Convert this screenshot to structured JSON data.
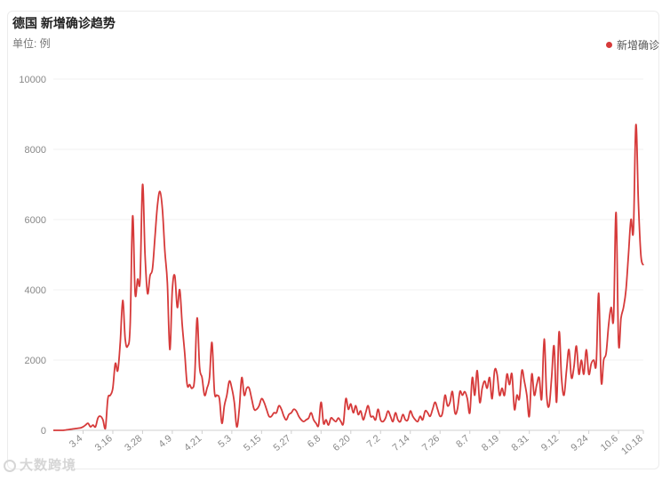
{
  "header": {
    "title": "德国 新增确诊趋势",
    "unit": "单位: 例"
  },
  "legend": {
    "label": "新增确诊",
    "color": "#d63a3a"
  },
  "watermark": {
    "text": "大数跨境",
    "icon": "logo-icon"
  },
  "chart_data": {
    "type": "line",
    "title": "德国 新增确诊趋势",
    "ylabel": "单位: 例",
    "ylim": [
      0,
      10000
    ],
    "yticks": [
      0,
      2000,
      4000,
      6000,
      8000,
      10000
    ],
    "xtick_labels": [
      "3.4",
      "3.16",
      "3.28",
      "4.9",
      "4.21",
      "5.3",
      "5.15",
      "5.27",
      "6.8",
      "6.20",
      "7.2",
      "7.14",
      "7.26",
      "8.7",
      "8.19",
      "8.31",
      "9.12",
      "9.24",
      "10.6",
      "10.18"
    ],
    "x_start": "2.21",
    "x_end": "10.20",
    "grid": true,
    "legend_position": "top-right",
    "series": [
      {
        "name": "新增确诊",
        "color": "#d63a3a",
        "values": [
          0,
          0,
          0,
          0,
          0,
          10,
          20,
          30,
          40,
          50,
          60,
          70,
          100,
          150,
          200,
          100,
          150,
          100,
          350,
          400,
          300,
          50,
          900,
          1000,
          1200,
          1900,
          1700,
          2500,
          3700,
          2600,
          2400,
          3000,
          6100,
          3900,
          4300,
          4300,
          7000,
          5000,
          3900,
          4400,
          4600,
          5500,
          6400,
          6800,
          6300,
          5100,
          4200,
          2300,
          4000,
          4400,
          3500,
          4000,
          3000,
          2200,
          1300,
          1300,
          1200,
          1500,
          3200,
          1800,
          1500,
          1000,
          1200,
          1500,
          2500,
          1100,
          1000,
          900,
          200,
          700,
          1000,
          1400,
          1200,
          800,
          100,
          600,
          1500,
          1000,
          1200,
          1200,
          900,
          600,
          600,
          700,
          900,
          800,
          600,
          400,
          400,
          500,
          500,
          700,
          600,
          400,
          300,
          450,
          500,
          600,
          550,
          400,
          300,
          250,
          300,
          350,
          500,
          300,
          200,
          150,
          800,
          200,
          300,
          150,
          350,
          300,
          250,
          350,
          250,
          200,
          900,
          600,
          750,
          500,
          700,
          450,
          550,
          300,
          500,
          700,
          400,
          400,
          300,
          600,
          300,
          250,
          350,
          550,
          400,
          250,
          500,
          300,
          250,
          450,
          300,
          300,
          550,
          400,
          300,
          250,
          400,
          300,
          550,
          500,
          400,
          600,
          800,
          600,
          400,
          500,
          1000,
          700,
          800,
          1100,
          500,
          600,
          1100,
          1000,
          1100,
          900,
          500,
          1500,
          1000,
          1700,
          800,
          1200,
          1400,
          1200,
          1500,
          900,
          1700,
          1600,
          1000,
          1200,
          1000,
          1600,
          1300,
          1600,
          600,
          1000,
          900,
          1700,
          1400,
          1000,
          400,
          1600,
          1000,
          1300,
          1500,
          900,
          2600,
          1000,
          700,
          1500,
          2400,
          800,
          2800,
          1500,
          1000,
          1700,
          2300,
          1500,
          1800,
          2400,
          1600,
          2000,
          1600,
          2300,
          1600,
          1900,
          2000,
          1900,
          3900,
          1400,
          2000,
          2200,
          3000,
          3500,
          3200,
          6200,
          2500,
          3200,
          3500,
          4000,
          5000,
          6000,
          5700,
          8700,
          6500,
          5000,
          4700
        ]
      }
    ]
  }
}
